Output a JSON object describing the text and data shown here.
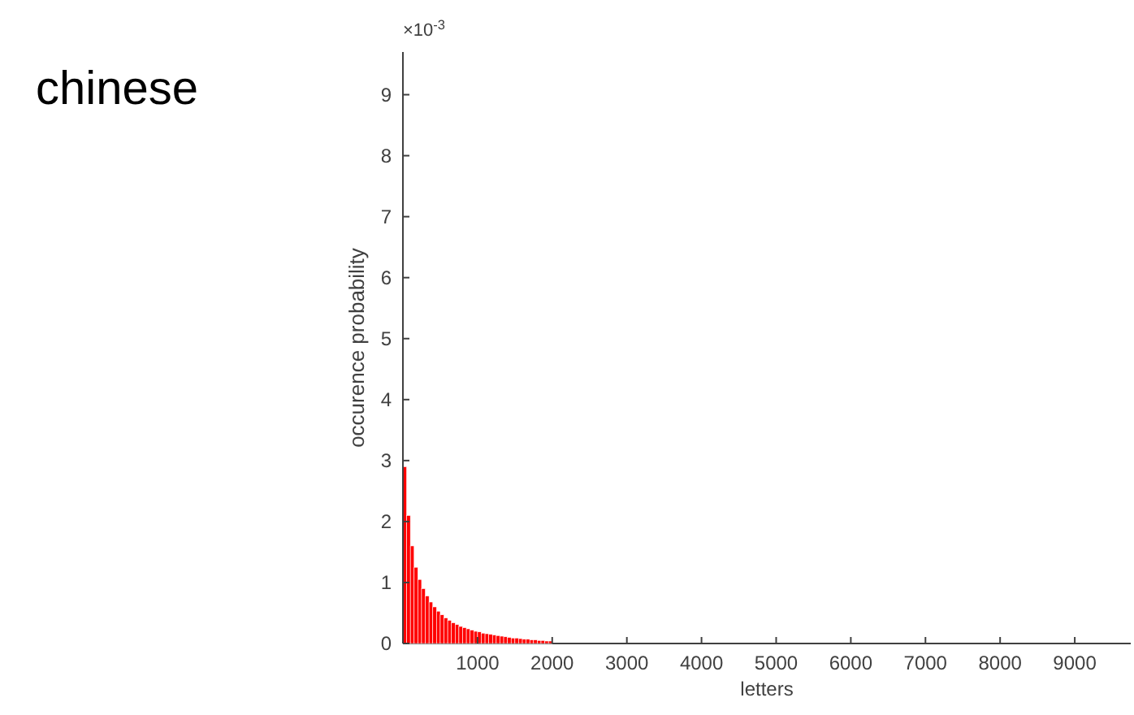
{
  "chart_data": {
    "type": "bar",
    "title": "chinese",
    "xlabel": "letters",
    "ylabel": "occurence probability",
    "annotations": [
      "×10$^{-3}$"
    ],
    "x": [
      25,
      75,
      125,
      175,
      225,
      275,
      325,
      375,
      425,
      475,
      525,
      575,
      625,
      675,
      725,
      775,
      825,
      875,
      925,
      975,
      1025,
      1075,
      1125,
      1175,
      1225,
      1275,
      1325,
      1375,
      1425,
      1475,
      1525,
      1575,
      1625,
      1675,
      1725,
      1775,
      1825,
      1875,
      1925,
      1975
    ],
    "values": [
      2.9,
      2.1,
      1.6,
      1.25,
      1.05,
      0.9,
      0.78,
      0.68,
      0.6,
      0.53,
      0.47,
      0.42,
      0.38,
      0.34,
      0.31,
      0.28,
      0.26,
      0.24,
      0.22,
      0.2,
      0.19,
      0.17,
      0.16,
      0.15,
      0.14,
      0.13,
      0.12,
      0.11,
      0.1,
      0.09,
      0.09,
      0.08,
      0.07,
      0.07,
      0.06,
      0.06,
      0.05,
      0.05,
      0.04,
      0.04
    ],
    "color": "#ff0000",
    "xlim": [
      0,
      9750
    ],
    "xticks": [
      1000,
      2000,
      3000,
      4000,
      5000,
      6000,
      7000,
      8000,
      9000
    ],
    "ylim": [
      0,
      9.7
    ],
    "yticks": [
      0,
      1,
      2,
      3,
      4,
      5,
      6,
      7,
      8,
      9
    ],
    "grid": false
  }
}
